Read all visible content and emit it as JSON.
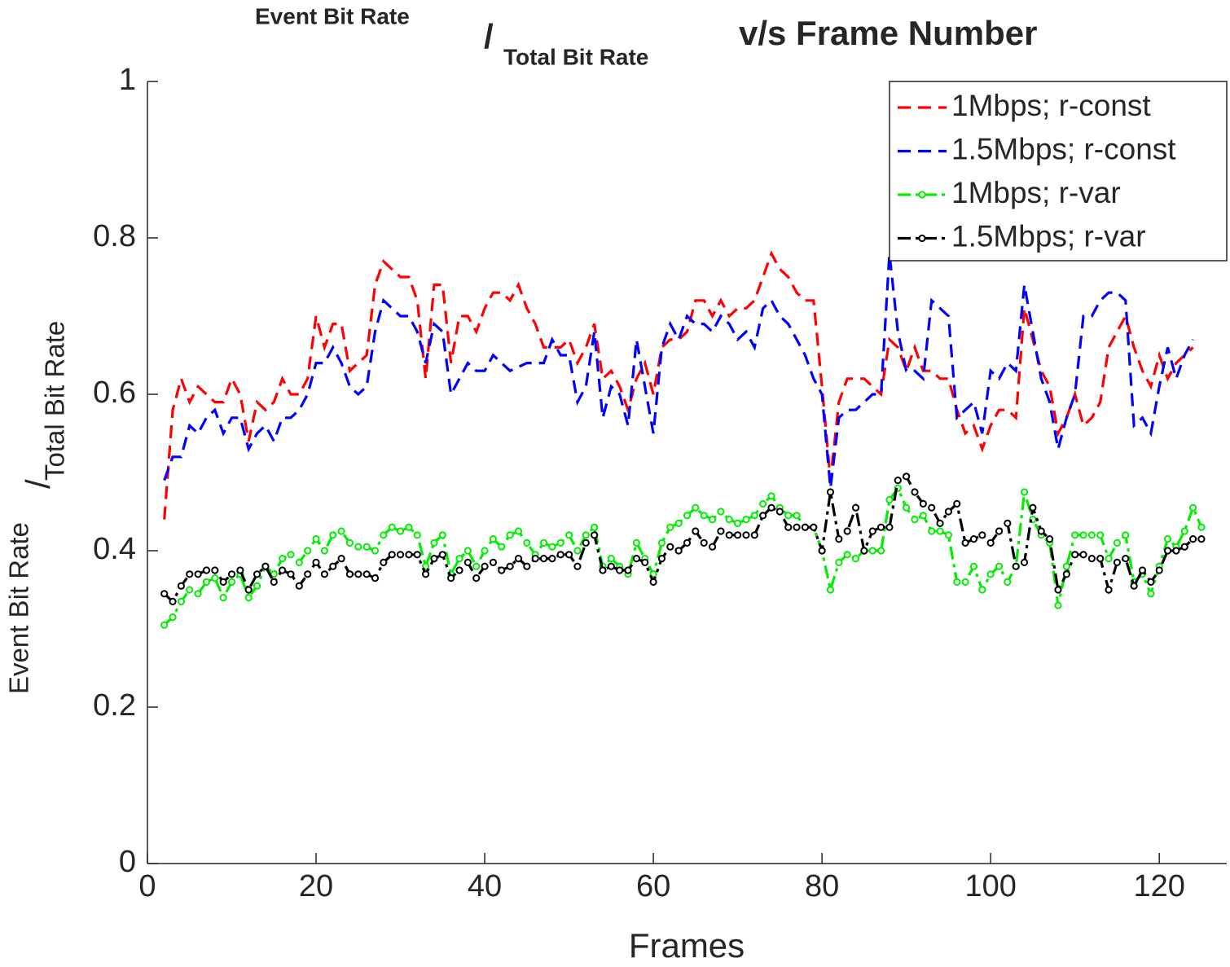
{
  "chart_data": {
    "type": "line",
    "title": {
      "numerator": "Event Bit Rate",
      "slash": "/",
      "denominator": "Total Bit Rate",
      "rest": "v/s Frame Number"
    },
    "xlabel": "Frames",
    "ylabel": {
      "numerator": "Event Bit Rate",
      "slash": "/",
      "denominator": "Total Bit Rate"
    },
    "xlim": [
      0,
      128
    ],
    "ylim": [
      0,
      1
    ],
    "xticks": [
      0,
      20,
      40,
      60,
      80,
      100,
      120
    ],
    "yticks": [
      0,
      0.2,
      0.4,
      0.6,
      0.8,
      1
    ],
    "grid": false,
    "legend": "top-right",
    "x": [
      2,
      3,
      4,
      5,
      6,
      7,
      8,
      9,
      10,
      11,
      12,
      13,
      14,
      15,
      16,
      17,
      18,
      19,
      20,
      21,
      22,
      23,
      24,
      25,
      26,
      27,
      28,
      29,
      30,
      31,
      32,
      33,
      34,
      35,
      36,
      37,
      38,
      39,
      40,
      41,
      42,
      43,
      44,
      45,
      46,
      47,
      48,
      49,
      50,
      51,
      52,
      53,
      54,
      55,
      56,
      57,
      58,
      59,
      60,
      61,
      62,
      63,
      64,
      65,
      66,
      67,
      68,
      69,
      70,
      71,
      72,
      73,
      74,
      75,
      76,
      77,
      78,
      79,
      80,
      81,
      82,
      83,
      84,
      85,
      86,
      87,
      88,
      89,
      90,
      91,
      92,
      93,
      94,
      95,
      96,
      97,
      98,
      99,
      100,
      101,
      102,
      103,
      104,
      105,
      106,
      107,
      108,
      109,
      110,
      111,
      112,
      113,
      114,
      115,
      116,
      117,
      118,
      119,
      120,
      121,
      122,
      123,
      124,
      125
    ],
    "series": [
      {
        "name": "1Mbps; r-const",
        "color": "#ff0000",
        "line_style": "dashed",
        "marker": "none",
        "values": [
          0.44,
          0.58,
          0.62,
          0.59,
          0.61,
          0.6,
          0.59,
          0.59,
          0.62,
          0.6,
          0.54,
          0.59,
          0.58,
          0.59,
          0.62,
          0.6,
          0.6,
          0.62,
          0.7,
          0.66,
          0.69,
          0.69,
          0.63,
          0.64,
          0.65,
          0.74,
          0.77,
          0.76,
          0.75,
          0.75,
          0.72,
          0.62,
          0.74,
          0.74,
          0.64,
          0.7,
          0.7,
          0.68,
          0.71,
          0.73,
          0.73,
          0.72,
          0.74,
          0.71,
          0.69,
          0.66,
          0.66,
          0.66,
          0.67,
          0.64,
          0.66,
          0.69,
          0.62,
          0.63,
          0.61,
          0.58,
          0.62,
          0.64,
          0.6,
          0.66,
          0.67,
          0.67,
          0.68,
          0.72,
          0.72,
          0.7,
          0.72,
          0.7,
          0.71,
          0.71,
          0.72,
          0.75,
          0.78,
          0.76,
          0.75,
          0.73,
          0.72,
          0.72,
          0.61,
          0.49,
          0.59,
          0.62,
          0.62,
          0.62,
          0.61,
          0.6,
          0.67,
          0.66,
          0.63,
          0.66,
          0.63,
          0.63,
          0.62,
          0.62,
          0.58,
          0.55,
          0.56,
          0.53,
          0.56,
          0.58,
          0.58,
          0.57,
          0.71,
          0.67,
          0.63,
          0.61,
          0.55,
          0.57,
          0.6,
          0.56,
          0.57,
          0.59,
          0.66,
          0.68,
          0.7,
          0.66,
          0.63,
          0.61,
          0.65,
          0.62,
          0.64,
          0.65,
          0.66,
          null
        ]
      },
      {
        "name": "1.5Mbps; r-const",
        "color": "#0000ff",
        "line_style": "dashed",
        "marker": "none",
        "values": [
          0.49,
          0.52,
          0.52,
          0.56,
          0.55,
          0.57,
          0.58,
          0.55,
          0.57,
          0.57,
          0.53,
          0.55,
          0.56,
          0.54,
          0.57,
          0.57,
          0.58,
          0.6,
          0.64,
          0.64,
          0.66,
          0.64,
          0.61,
          0.6,
          0.61,
          0.68,
          0.72,
          0.71,
          0.7,
          0.7,
          0.68,
          0.64,
          0.69,
          0.68,
          0.6,
          0.62,
          0.64,
          0.63,
          0.63,
          0.65,
          0.64,
          0.63,
          0.635,
          0.64,
          0.64,
          0.64,
          0.67,
          0.65,
          0.65,
          0.59,
          0.61,
          0.68,
          0.57,
          0.61,
          0.6,
          0.56,
          0.67,
          0.61,
          0.55,
          0.66,
          0.69,
          0.67,
          0.7,
          0.69,
          0.69,
          0.68,
          0.7,
          0.69,
          0.67,
          0.68,
          0.66,
          0.71,
          0.72,
          0.7,
          0.69,
          0.67,
          0.65,
          0.62,
          0.6,
          0.48,
          0.57,
          0.58,
          0.58,
          0.59,
          0.6,
          0.6,
          0.78,
          0.68,
          0.63,
          0.63,
          0.62,
          0.72,
          0.71,
          0.7,
          0.57,
          0.58,
          0.59,
          0.55,
          0.63,
          0.62,
          0.64,
          0.63,
          0.74,
          0.68,
          0.62,
          0.59,
          0.53,
          0.57,
          0.6,
          0.7,
          0.7,
          0.72,
          0.73,
          0.73,
          0.72,
          0.56,
          0.57,
          0.55,
          0.61,
          0.66,
          0.62,
          0.65,
          0.67,
          null
        ]
      },
      {
        "name": "1Mbps; r-var",
        "color": "#00ee00",
        "line_style": "dash-dot",
        "marker": "circle",
        "values": [
          0.305,
          0.315,
          0.335,
          0.35,
          0.345,
          0.36,
          0.365,
          0.34,
          0.36,
          0.37,
          0.34,
          0.355,
          0.38,
          0.37,
          0.39,
          0.395,
          0.385,
          0.4,
          0.415,
          0.4,
          0.42,
          0.425,
          0.41,
          0.405,
          0.405,
          0.4,
          0.42,
          0.43,
          0.425,
          0.43,
          0.42,
          0.38,
          0.41,
          0.42,
          0.37,
          0.39,
          0.4,
          0.38,
          0.4,
          0.415,
          0.405,
          0.42,
          0.425,
          0.41,
          0.395,
          0.41,
          0.405,
          0.41,
          0.42,
          0.4,
          0.42,
          0.43,
          0.38,
          0.39,
          0.38,
          0.37,
          0.41,
          0.39,
          0.37,
          0.41,
          0.43,
          0.435,
          0.445,
          0.455,
          0.445,
          0.44,
          0.45,
          0.44,
          0.435,
          0.44,
          0.445,
          0.46,
          0.47,
          0.455,
          0.445,
          0.445,
          0.43,
          0.43,
          0.4,
          0.35,
          0.385,
          0.395,
          0.39,
          0.4,
          0.4,
          0.4,
          0.465,
          0.48,
          0.455,
          0.44,
          0.445,
          0.425,
          0.425,
          0.42,
          0.36,
          0.36,
          0.38,
          0.35,
          0.37,
          0.38,
          0.36,
          0.38,
          0.475,
          0.44,
          0.42,
          0.41,
          0.33,
          0.38,
          0.42,
          0.42,
          0.42,
          0.42,
          0.39,
          0.41,
          0.42,
          0.36,
          0.37,
          0.345,
          0.38,
          0.415,
          0.405,
          0.425,
          0.455,
          0.43
        ]
      },
      {
        "name": "1.5Mbps; r-var",
        "color": "#000000",
        "line_style": "dash-dot",
        "marker": "circle",
        "values": [
          0.345,
          0.335,
          0.355,
          0.37,
          0.37,
          0.375,
          0.375,
          0.36,
          0.37,
          0.375,
          0.35,
          0.37,
          0.38,
          0.36,
          0.375,
          0.37,
          0.355,
          0.37,
          0.385,
          0.37,
          0.38,
          0.39,
          0.37,
          0.37,
          0.37,
          0.365,
          0.385,
          0.395,
          0.395,
          0.395,
          0.395,
          0.37,
          0.39,
          0.395,
          0.365,
          0.375,
          0.385,
          0.365,
          0.38,
          0.385,
          0.375,
          0.38,
          0.39,
          0.38,
          0.39,
          0.39,
          0.39,
          0.395,
          0.395,
          0.38,
          0.41,
          0.42,
          0.375,
          0.38,
          0.375,
          0.375,
          0.39,
          0.385,
          0.36,
          0.39,
          0.405,
          0.4,
          0.41,
          0.425,
          0.41,
          0.405,
          0.425,
          0.42,
          0.42,
          0.42,
          0.42,
          0.445,
          0.455,
          0.45,
          0.43,
          0.43,
          0.43,
          0.43,
          0.4,
          0.475,
          0.415,
          0.425,
          0.455,
          0.4,
          0.425,
          0.43,
          0.43,
          0.49,
          0.495,
          0.475,
          0.46,
          0.455,
          0.435,
          0.45,
          0.46,
          0.41,
          0.415,
          0.42,
          0.41,
          0.425,
          0.435,
          0.38,
          0.385,
          0.455,
          0.425,
          0.415,
          0.35,
          0.37,
          0.395,
          0.395,
          0.39,
          0.39,
          0.35,
          0.385,
          0.39,
          0.355,
          0.375,
          0.36,
          0.375,
          0.4,
          0.4,
          0.405,
          0.415,
          0.415
        ]
      }
    ]
  }
}
